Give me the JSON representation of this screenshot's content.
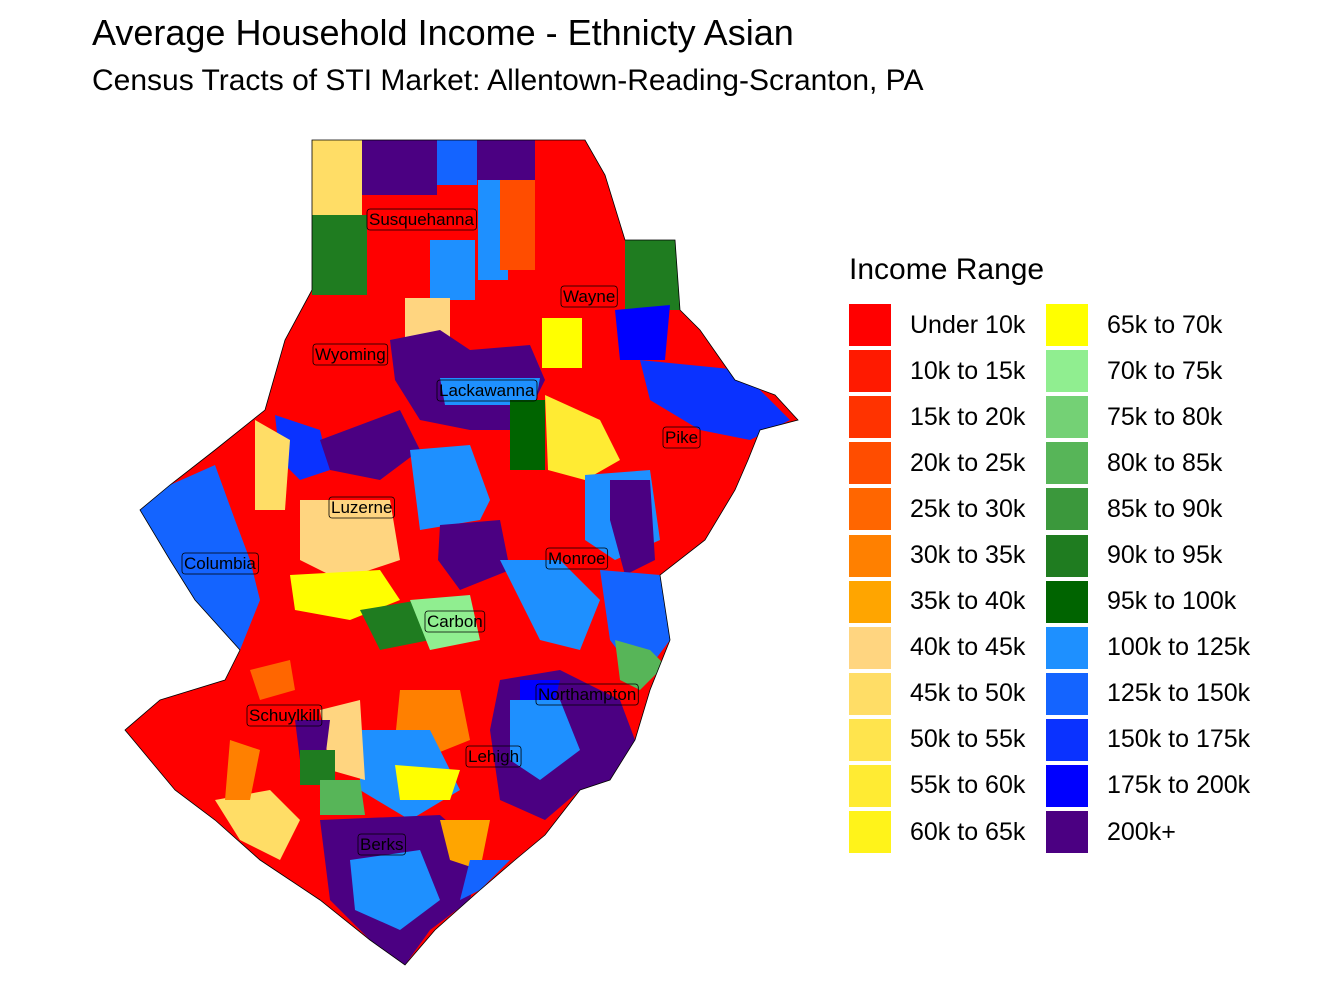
{
  "title": "Average Household Income - Ethnicty Asian",
  "subtitle": "Census Tracts of STI Market: Allentown-Reading-Scranton, PA",
  "legend": {
    "title": "Income Range",
    "items": [
      {
        "label": "Under 10k",
        "color": "#FF0000"
      },
      {
        "label": "10k to 15k",
        "color": "#FF1A00"
      },
      {
        "label": "15k to 20k",
        "color": "#FF3300"
      },
      {
        "label": "20k to 25k",
        "color": "#FF4D00"
      },
      {
        "label": "25k to 30k",
        "color": "#FF6600"
      },
      {
        "label": "30k to 35k",
        "color": "#FF8000"
      },
      {
        "label": "35k to 40k",
        "color": "#FFA500"
      },
      {
        "label": "40k to 45k",
        "color": "#FFD580"
      },
      {
        "label": "45k to 50k",
        "color": "#FFDD66"
      },
      {
        "label": "50k to 55k",
        "color": "#FFE44D"
      },
      {
        "label": "55k to 60k",
        "color": "#FFEB33"
      },
      {
        "label": "60k to 65k",
        "color": "#FFF31A"
      },
      {
        "label": "65k to 70k",
        "color": "#FFFF00"
      },
      {
        "label": "70k to 75k",
        "color": "#90EE90"
      },
      {
        "label": "75k to 80k",
        "color": "#74D175"
      },
      {
        "label": "80k to 85k",
        "color": "#57B558"
      },
      {
        "label": "85k to 90k",
        "color": "#3B983C"
      },
      {
        "label": "90k to 95k",
        "color": "#1F7C20"
      },
      {
        "label": "95k to 100k",
        "color": "#006400"
      },
      {
        "label": "100k to 125k",
        "color": "#1E90FF"
      },
      {
        "label": "125k to 150k",
        "color": "#1464FF"
      },
      {
        "label": "150k to 175k",
        "color": "#0A32FF"
      },
      {
        "label": "175k to 200k",
        "color": "#0000FF"
      },
      {
        "label": "200k+",
        "color": "#4B0082"
      }
    ]
  },
  "counties": [
    "Susquehanna",
    "Wayne",
    "Wyoming",
    "Lackawanna",
    "Pike",
    "Luzerne",
    "Columbia",
    "Monroe",
    "Carbon",
    "Northampton",
    "Schuylkill",
    "Lehigh",
    "Berks"
  ]
}
